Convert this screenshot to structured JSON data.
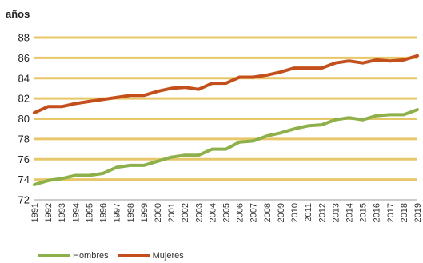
{
  "chart_data": {
    "type": "line",
    "unit_label": "años",
    "x": [
      "1991",
      "1992",
      "1993",
      "1994",
      "1995",
      "1996",
      "1997",
      "1998",
      "1999",
      "2000",
      "2001",
      "2002",
      "2003",
      "2004",
      "2005",
      "2006",
      "2007",
      "2008",
      "2009",
      "2010",
      "2011",
      "2012",
      "2013",
      "2014",
      "2015",
      "2016",
      "2017",
      "2018",
      "2019"
    ],
    "ylim": [
      72,
      88
    ],
    "yticks": [
      72,
      74,
      76,
      78,
      80,
      82,
      84,
      86,
      88
    ],
    "grid": true,
    "legend_position": "bottom-left",
    "series": [
      {
        "name": "Hombres",
        "color": "#8db04a",
        "values": [
          73.5,
          73.9,
          74.1,
          74.4,
          74.4,
          74.6,
          75.2,
          75.4,
          75.4,
          75.8,
          76.2,
          76.4,
          76.4,
          77.0,
          77.0,
          77.7,
          77.8,
          78.3,
          78.6,
          79.0,
          79.3,
          79.4,
          79.9,
          80.1,
          79.9,
          80.3,
          80.4,
          80.4,
          80.9
        ]
      },
      {
        "name": "Mujeres",
        "color": "#c3501c",
        "values": [
          80.6,
          81.2,
          81.2,
          81.5,
          81.7,
          81.9,
          82.1,
          82.3,
          82.3,
          82.7,
          83.0,
          83.1,
          82.9,
          83.5,
          83.5,
          84.1,
          84.1,
          84.3,
          84.6,
          85.0,
          85.0,
          85.0,
          85.5,
          85.7,
          85.5,
          85.8,
          85.7,
          85.8,
          86.2
        ]
      }
    ],
    "gridline_color": "#e8c76a",
    "axis_color": "#999999"
  }
}
